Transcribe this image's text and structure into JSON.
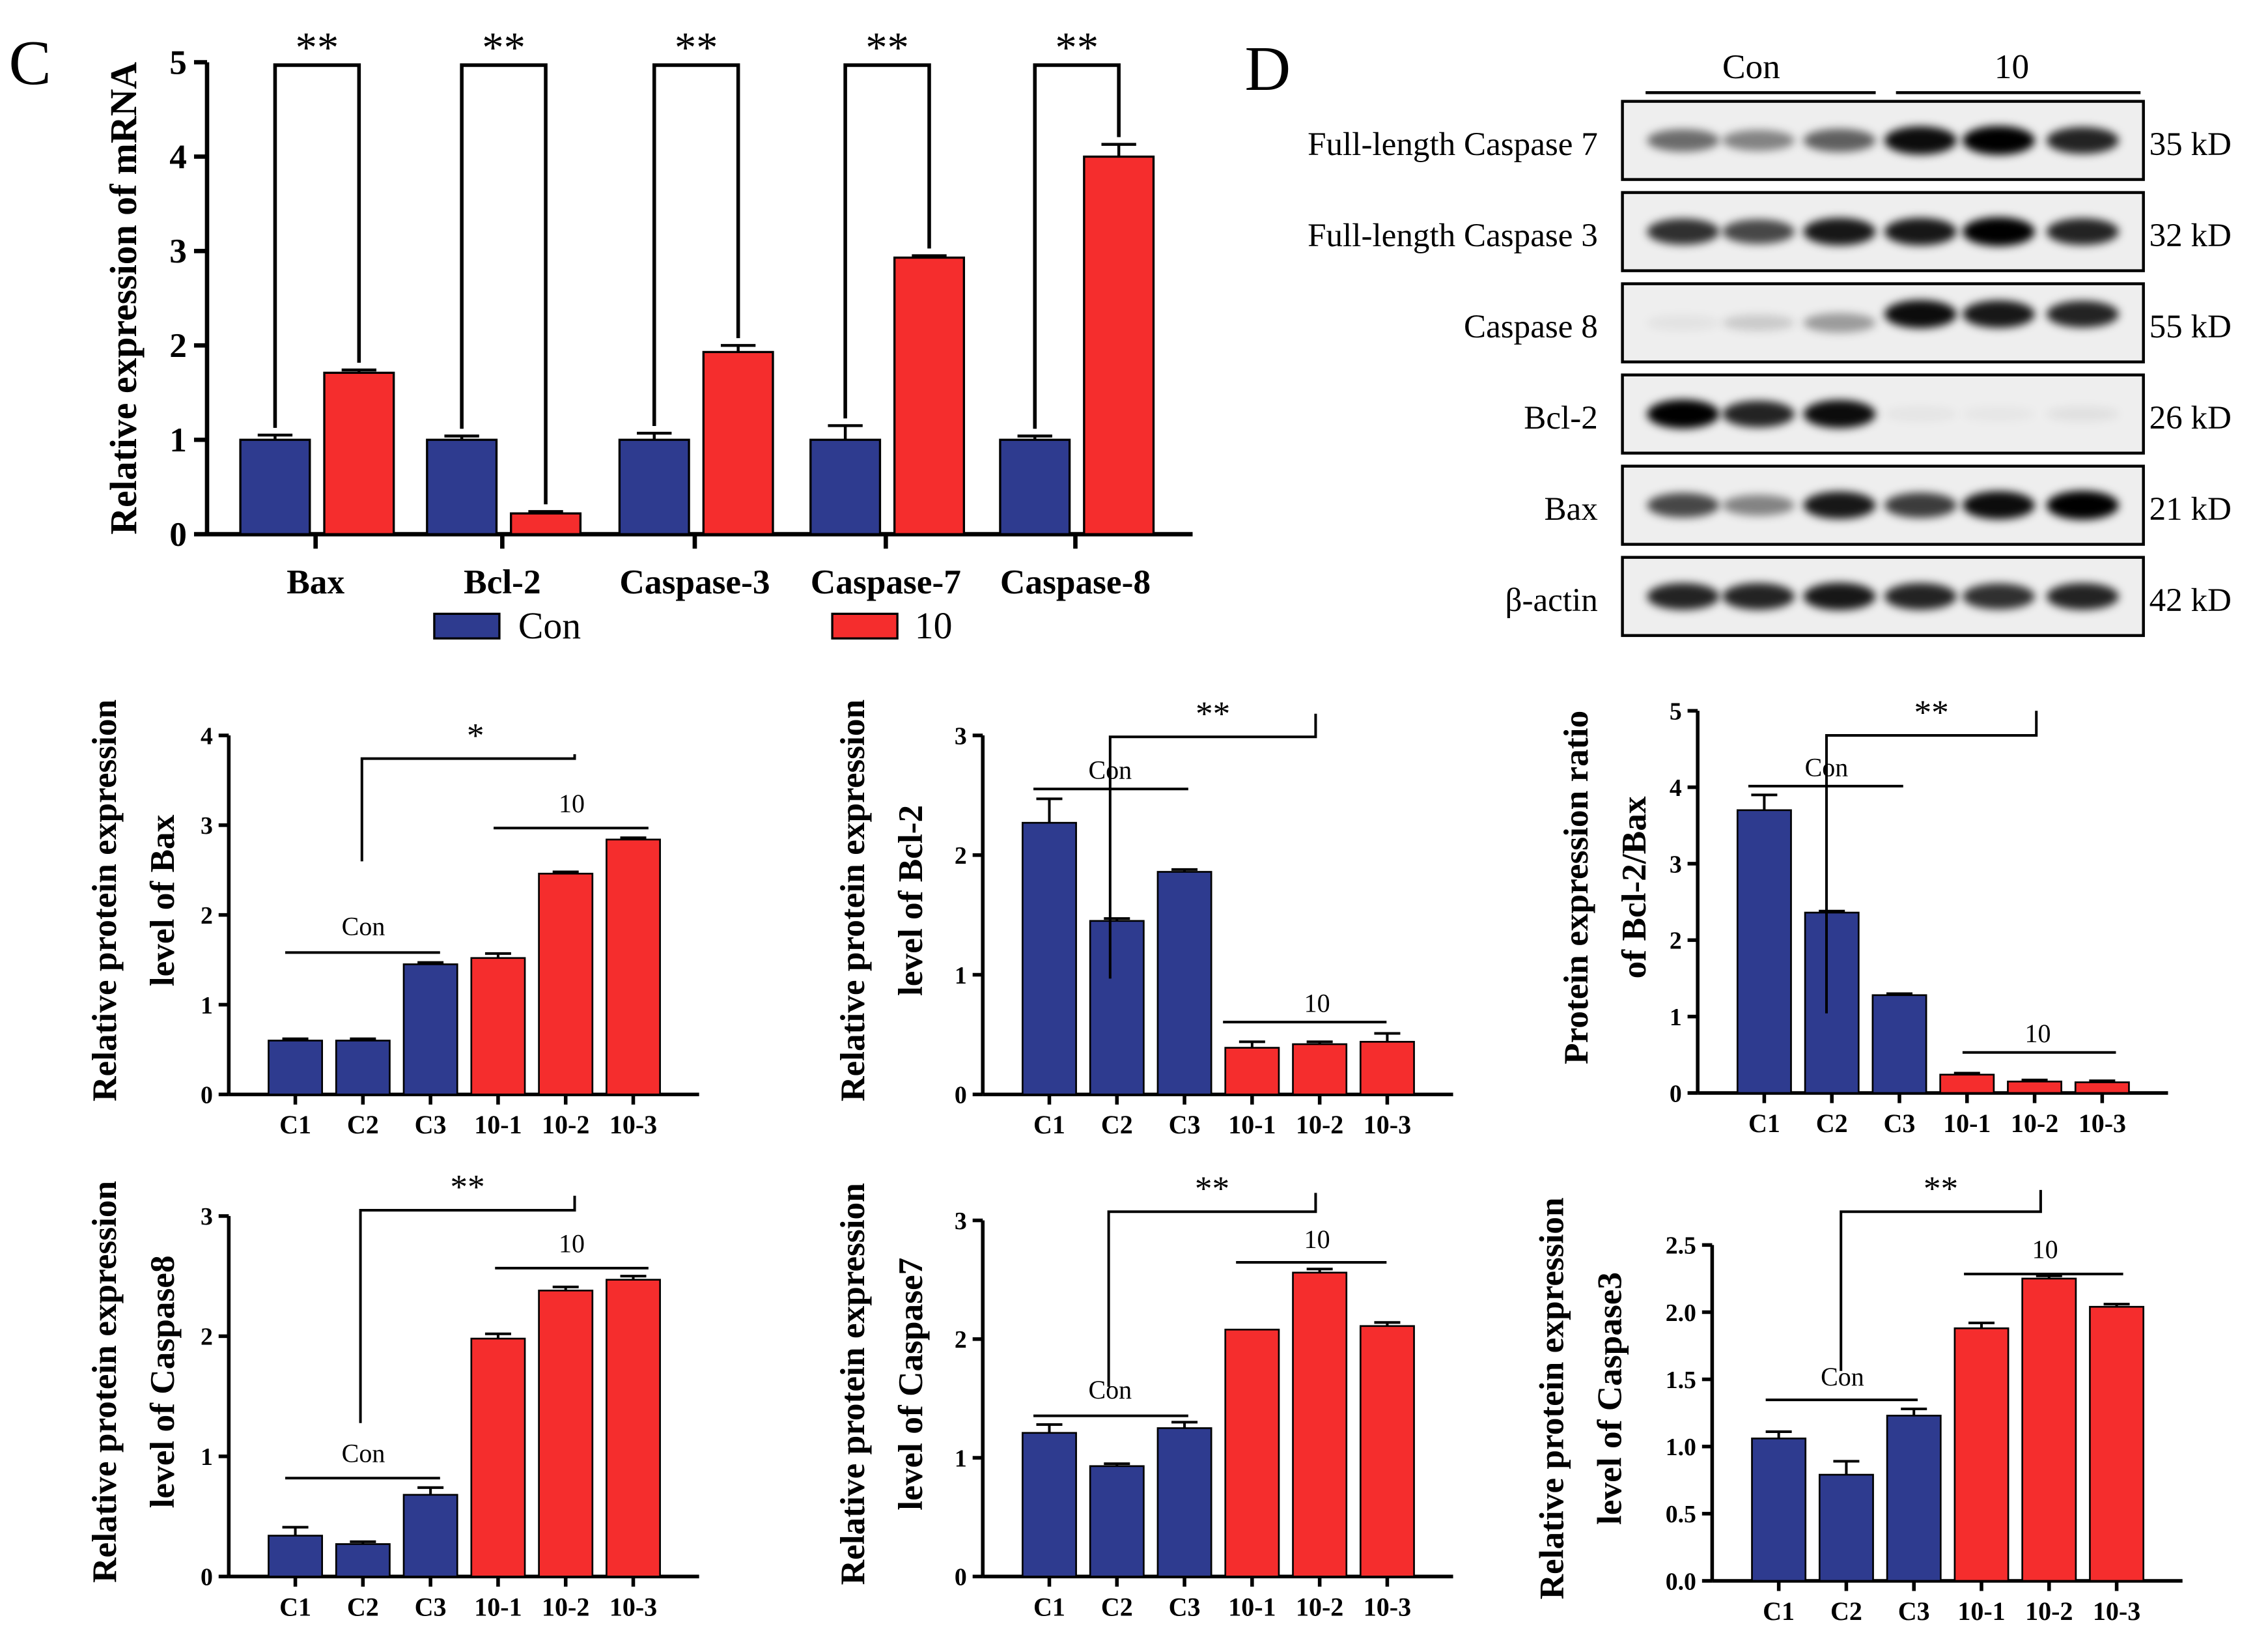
{
  "panel_labels": {
    "c": "C",
    "d": "D"
  },
  "colors": {
    "con": "#2e3b8f",
    "treat": "#f52d2d",
    "axis": "#000000",
    "sig": "#000000"
  },
  "chart_data": [
    {
      "id": "mrna",
      "type": "bar",
      "title": "",
      "ylabel": "Relative expression of mRNA",
      "xlabel": "",
      "ylim": [
        0,
        5
      ],
      "yticks": [
        "0",
        "1",
        "2",
        "3",
        "4",
        "5"
      ],
      "categories": [
        "Bax",
        "Bcl-2",
        "Caspase-3",
        "Caspase-7",
        "Caspase-8"
      ],
      "series": [
        {
          "name": "Con",
          "values": [
            1.0,
            1.0,
            1.0,
            1.0,
            1.0
          ],
          "errors": [
            0.05,
            0.04,
            0.07,
            0.15,
            0.04
          ]
        },
        {
          "name": "10",
          "values": [
            1.71,
            0.22,
            1.93,
            2.93,
            4.0
          ],
          "errors": [
            0.03,
            0.02,
            0.07,
            0.02,
            0.13
          ]
        }
      ],
      "significance": [
        "**",
        "**",
        "**",
        "**",
        "**"
      ],
      "legend": {
        "con": "Con",
        "treat": "10"
      }
    },
    {
      "id": "bax",
      "type": "bar",
      "ylabel": "Relative protein expression level of Bax",
      "ylabel_lines": [
        "Relative protein expression",
        "level of Bax"
      ],
      "ylim": [
        0,
        4
      ],
      "yticks": [
        "0",
        "1",
        "2",
        "3",
        "4"
      ],
      "categories": [
        "C1",
        "C2",
        "C3",
        "10-1",
        "10-2",
        "10-3"
      ],
      "values": [
        0.6,
        0.6,
        1.45,
        1.52,
        2.46,
        2.84
      ],
      "errors": [
        0.02,
        0.02,
        0.02,
        0.05,
        0.02,
        0.02
      ],
      "group_labels": {
        "con": "Con",
        "treat": "10"
      },
      "significance": "*"
    },
    {
      "id": "bcl2",
      "type": "bar",
      "ylabel": "Relative protein expression level of Bcl-2",
      "ylabel_lines": [
        "Relative protein expression",
        "level of Bcl-2"
      ],
      "ylim": [
        0,
        3
      ],
      "yticks": [
        "0",
        "1",
        "2",
        "3"
      ],
      "categories": [
        "C1",
        "C2",
        "C3",
        "10-1",
        "10-2",
        "10-3"
      ],
      "values": [
        2.27,
        1.45,
        1.86,
        0.39,
        0.42,
        0.44
      ],
      "errors": [
        0.2,
        0.02,
        0.02,
        0.05,
        0.02,
        0.07
      ],
      "group_labels": {
        "con": "Con",
        "treat": "10"
      },
      "significance": "**"
    },
    {
      "id": "ratio",
      "type": "bar",
      "ylabel": "Protein expression ratio of Bcl-2/Bax",
      "ylabel_lines": [
        "Protein expression ratio",
        "of Bcl-2/Bax"
      ],
      "ylim": [
        0,
        5
      ],
      "yticks": [
        "0",
        "1",
        "2",
        "3",
        "4",
        "5"
      ],
      "categories": [
        "C1",
        "C2",
        "C3",
        "10-1",
        "10-2",
        "10-3"
      ],
      "values": [
        3.7,
        2.36,
        1.28,
        0.24,
        0.15,
        0.14
      ],
      "errors": [
        0.2,
        0.02,
        0.02,
        0.02,
        0.02,
        0.02
      ],
      "group_labels": {
        "con": "Con",
        "treat": "10"
      },
      "significance": "**"
    },
    {
      "id": "casp8",
      "type": "bar",
      "ylabel": "Relative protein expression level of Caspase8",
      "ylabel_lines": [
        "Relative protein expression",
        "level of Caspase8"
      ],
      "ylim": [
        0,
        3
      ],
      "yticks": [
        "0",
        "1",
        "2",
        "3"
      ],
      "categories": [
        "C1",
        "C2",
        "C3",
        "10-1",
        "10-2",
        "10-3"
      ],
      "values": [
        0.34,
        0.27,
        0.68,
        1.98,
        2.38,
        2.47
      ],
      "errors": [
        0.07,
        0.02,
        0.06,
        0.04,
        0.03,
        0.03
      ],
      "group_labels": {
        "con": "Con",
        "treat": "10"
      },
      "significance": "**"
    },
    {
      "id": "casp7",
      "type": "bar",
      "ylabel": "Relative protein expression level of Caspase7",
      "ylabel_lines": [
        "Relative protein expression",
        "level of Caspase7"
      ],
      "ylim": [
        0,
        3
      ],
      "yticks": [
        "0",
        "1",
        "2",
        "3"
      ],
      "categories": [
        "C1",
        "C2",
        "C3",
        "10-1",
        "10-2",
        "10-3"
      ],
      "values": [
        1.21,
        0.93,
        1.25,
        2.08,
        2.56,
        2.11
      ],
      "errors": [
        0.07,
        0.02,
        0.05,
        0.0,
        0.03,
        0.03
      ],
      "group_labels": {
        "con": "Con",
        "treat": "10"
      },
      "significance": "**"
    },
    {
      "id": "casp3",
      "type": "bar",
      "ylabel": "Relative protein expression level of Caspase3",
      "ylabel_lines": [
        "Relative protein expression",
        "level of Caspase3"
      ],
      "ylim": [
        0,
        2.5
      ],
      "yticks": [
        "0.0",
        "0.5",
        "1.0",
        "1.5",
        "2.0",
        "2.5"
      ],
      "categories": [
        "C1",
        "C2",
        "C3",
        "10-1",
        "10-2",
        "10-3"
      ],
      "values": [
        1.06,
        0.79,
        1.23,
        1.88,
        2.25,
        2.04
      ],
      "errors": [
        0.05,
        0.1,
        0.05,
        0.04,
        0.02,
        0.02
      ],
      "group_labels": {
        "con": "Con",
        "treat": "10"
      },
      "significance": "**"
    }
  ],
  "blot": {
    "group_labels": {
      "con": "Con",
      "treat": "10"
    },
    "rows": [
      {
        "label": "Full-length Caspase 7",
        "size": "35 kD",
        "con": [
          0.55,
          0.45,
          0.6
        ],
        "treat": [
          0.95,
          1.0,
          0.85
        ],
        "offset": 0
      },
      {
        "label": "Full-length Caspase 3",
        "size": "32 kD",
        "con": [
          0.8,
          0.7,
          0.9
        ],
        "treat": [
          0.9,
          1.0,
          0.85
        ],
        "offset": 0
      },
      {
        "label": "Caspase 8",
        "size": "55 kD",
        "con": [
          0.05,
          0.15,
          0.35
        ],
        "treat": [
          0.95,
          0.9,
          0.85
        ],
        "offset": -6
      },
      {
        "label": "Bcl-2",
        "size": "26 kD",
        "con": [
          1.0,
          0.85,
          0.95
        ],
        "treat": [
          0.04,
          0.03,
          0.06
        ],
        "offset": 0
      },
      {
        "label": "Bax",
        "size": "21 kD",
        "con": [
          0.7,
          0.45,
          0.9
        ],
        "treat": [
          0.75,
          0.95,
          1.0
        ],
        "offset": 0
      },
      {
        "label": "β-actin",
        "size": "42 kD",
        "con": [
          0.85,
          0.85,
          0.9
        ],
        "treat": [
          0.85,
          0.8,
          0.85
        ],
        "offset": 0
      }
    ]
  }
}
